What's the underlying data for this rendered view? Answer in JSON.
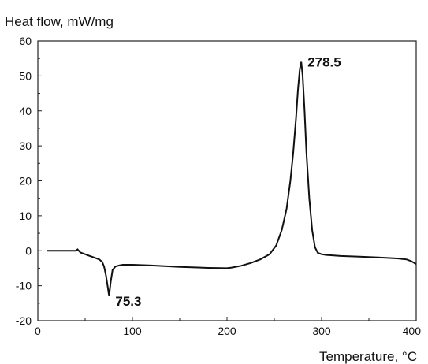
{
  "chart_data": {
    "type": "line",
    "title": "",
    "ylabel": "Heat flow, mW/mg",
    "xlabel": "Temperature, °C",
    "xlim": [
      0,
      400
    ],
    "ylim": [
      -20,
      60
    ],
    "xticks": [
      0,
      100,
      200,
      300,
      400
    ],
    "yticks": [
      -20,
      -10,
      0,
      10,
      20,
      30,
      40,
      50,
      60
    ],
    "grid": false,
    "legend": "none",
    "line_color": "#111111",
    "series": [
      {
        "x": [
          10,
          30,
          40,
          42,
          45,
          50,
          55,
          60,
          65,
          68,
          70,
          72,
          74,
          75.3,
          77,
          79,
          82,
          86,
          90,
          100,
          120,
          150,
          180,
          200,
          205,
          215,
          225,
          235,
          245,
          252,
          258,
          263,
          267,
          270,
          273,
          275,
          277,
          278.5,
          280,
          282,
          284,
          287,
          290,
          293,
          296,
          300,
          305,
          310,
          320,
          340,
          360,
          380,
          390,
          395,
          400
        ],
        "y": [
          0,
          0,
          0,
          0.4,
          -0.5,
          -1.0,
          -1.5,
          -2.0,
          -2.5,
          -3.2,
          -4.5,
          -7.0,
          -10.5,
          -13.0,
          -9.0,
          -5.5,
          -4.5,
          -4.2,
          -4.0,
          -4.0,
          -4.2,
          -4.6,
          -4.9,
          -5.0,
          -4.8,
          -4.3,
          -3.5,
          -2.5,
          -1.0,
          1.5,
          6.0,
          12.0,
          20.0,
          28.0,
          38.0,
          46.0,
          52.0,
          54.0,
          50.0,
          40.0,
          28.0,
          15.0,
          6.0,
          1.0,
          -0.6,
          -1.0,
          -1.2,
          -1.3,
          -1.5,
          -1.7,
          -1.9,
          -2.2,
          -2.5,
          -3.0,
          -3.8
        ]
      }
    ],
    "annotations": [
      {
        "text": "278.5",
        "x": 278.5,
        "y": 54
      },
      {
        "text": "75.3",
        "x": 75.3,
        "y": -13
      }
    ]
  }
}
